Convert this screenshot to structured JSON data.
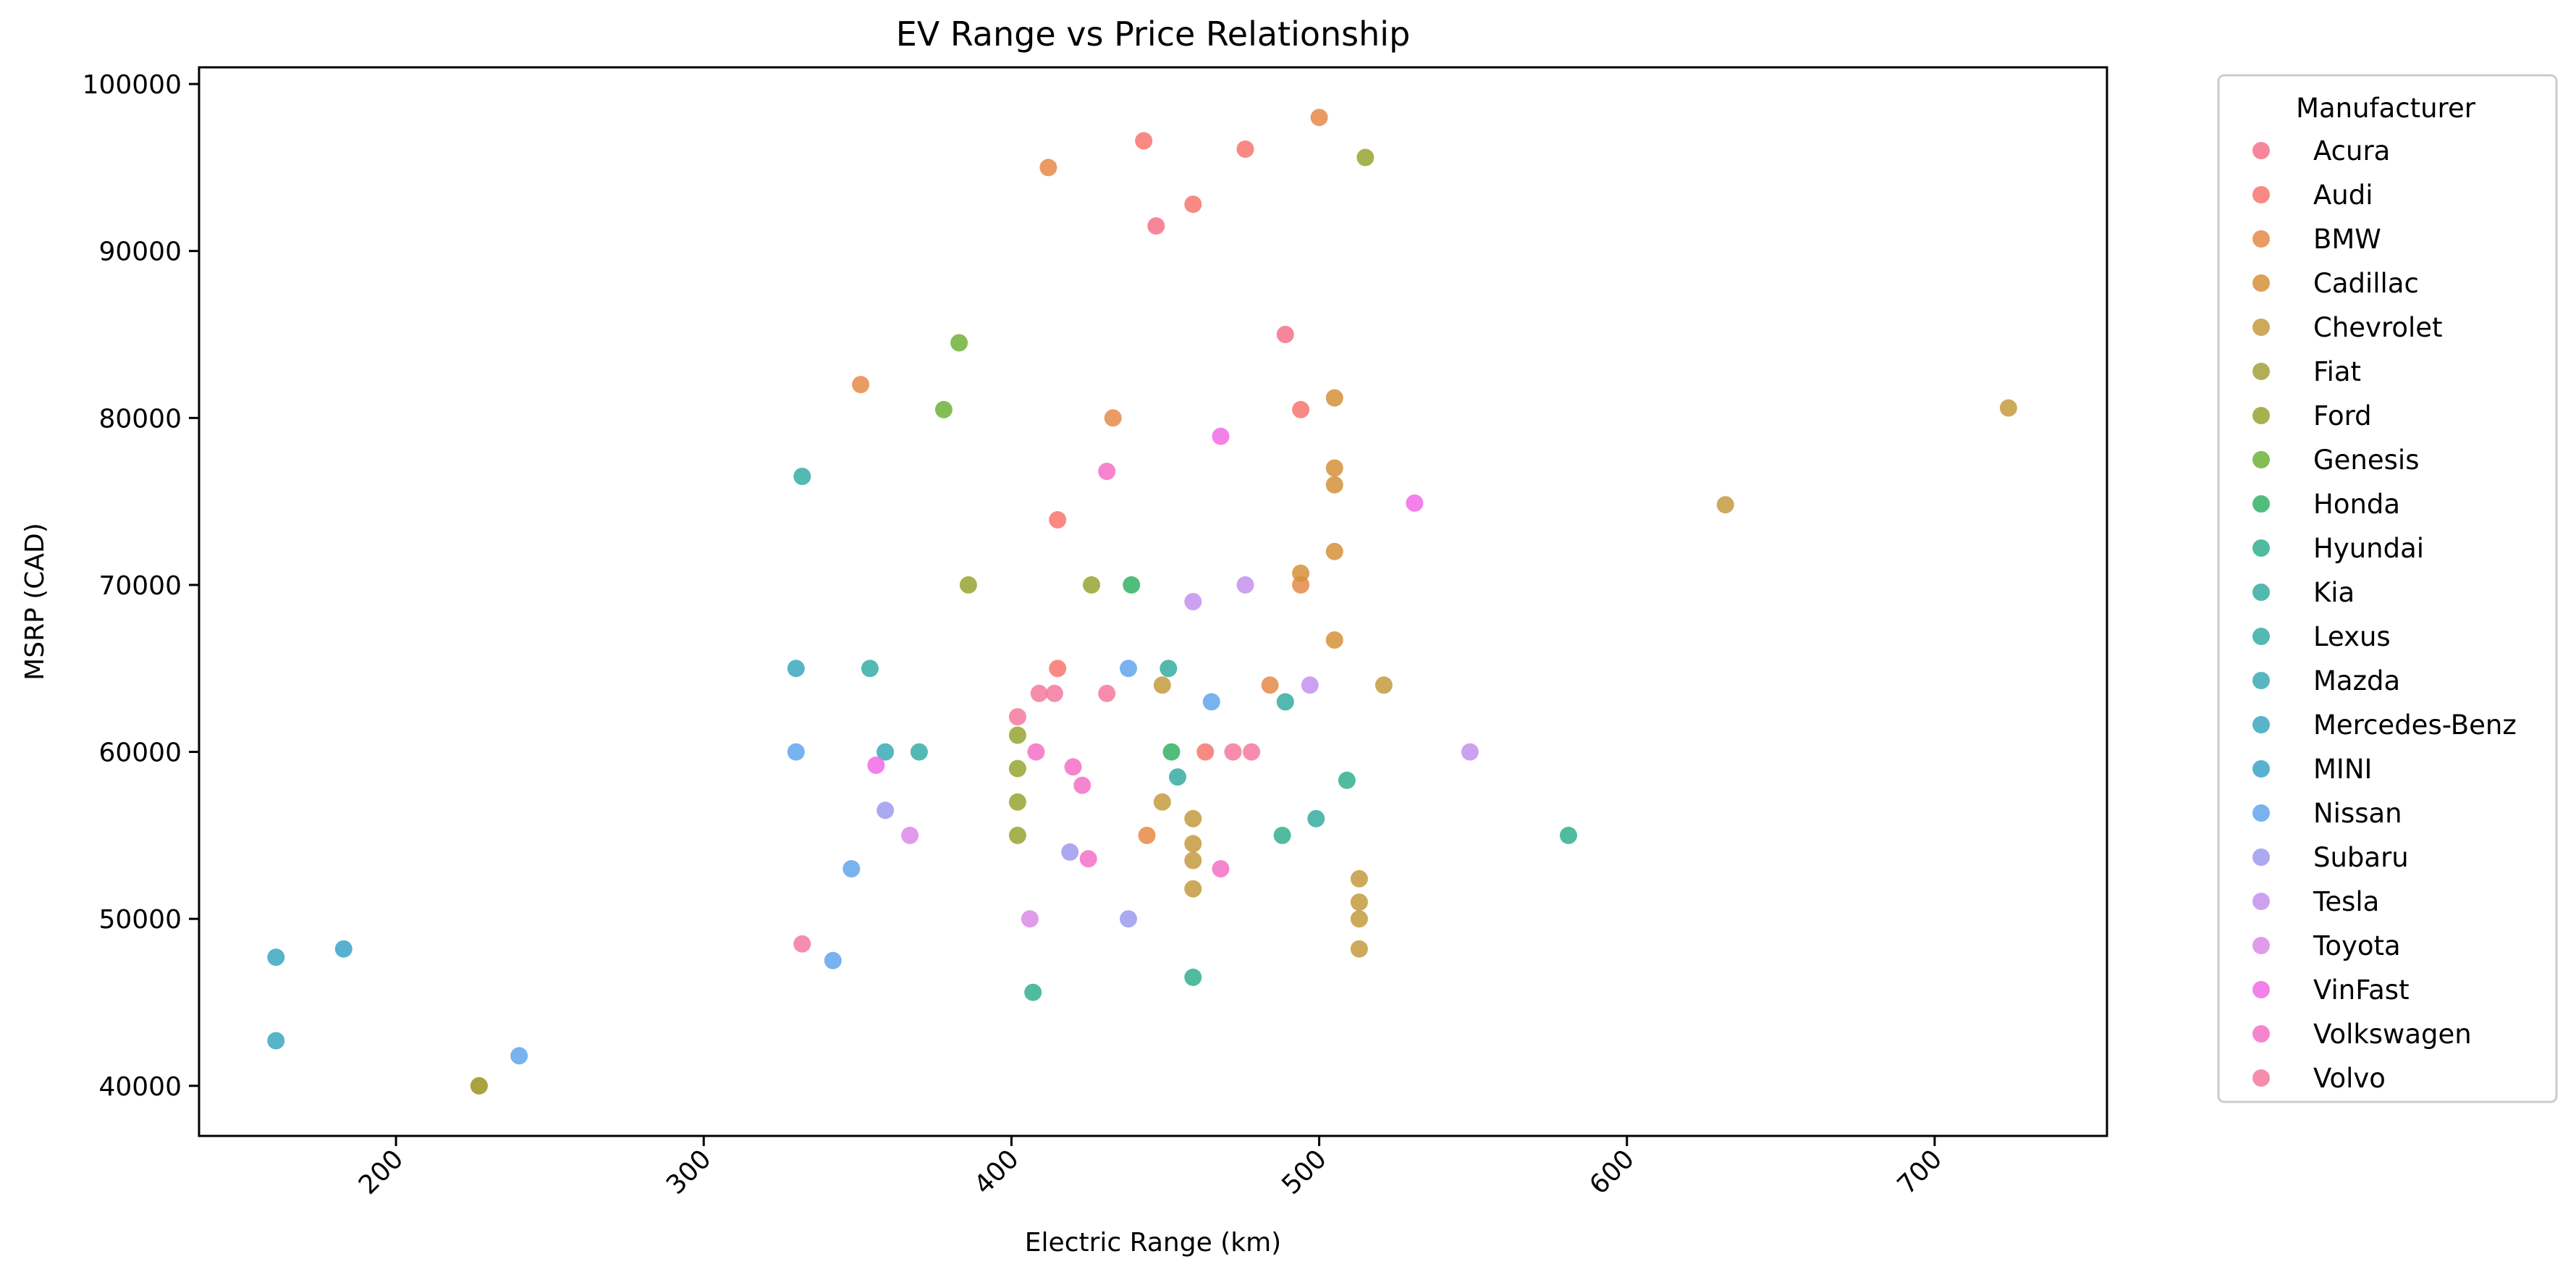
{
  "chart_data": {
    "type": "scatter",
    "title": "EV Range vs Price Relationship",
    "xlabel": "Electric Range (km)",
    "ylabel": "MSRP (CAD)",
    "xlim": [
      136,
      756
    ],
    "ylim": [
      37000,
      101000
    ],
    "x_ticks": [
      200,
      300,
      400,
      500,
      600,
      700
    ],
    "y_ticks": [
      40000,
      50000,
      60000,
      70000,
      80000,
      90000,
      100000
    ],
    "grid": false,
    "legend": {
      "title": "Manufacturer",
      "placement": "outside-right"
    },
    "series": [
      {
        "name": "Acura",
        "color": "#f77189",
        "points": [
          [
            447,
            91500
          ],
          [
            489,
            85000
          ]
        ]
      },
      {
        "name": "Audi",
        "color": "#f7766d",
        "points": [
          [
            443,
            96600
          ],
          [
            476,
            96100
          ],
          [
            459,
            92800
          ],
          [
            494,
            80500
          ],
          [
            415,
            73900
          ],
          [
            415,
            65000
          ],
          [
            463,
            60000
          ]
        ]
      },
      {
        "name": "BMW",
        "color": "#e58a48",
        "points": [
          [
            412,
            95000
          ],
          [
            500,
            98000
          ],
          [
            351,
            82000
          ],
          [
            433,
            80000
          ],
          [
            484,
            64000
          ],
          [
            444,
            55000
          ],
          [
            494,
            70000
          ]
        ]
      },
      {
        "name": "Cadillac",
        "color": "#d3913a",
        "points": [
          [
            505,
            81200
          ],
          [
            505,
            77000
          ],
          [
            505,
            76000
          ],
          [
            505,
            72000
          ],
          [
            494,
            70700
          ],
          [
            505,
            66700
          ]
        ]
      },
      {
        "name": "Chevrolet",
        "color": "#c49a3e",
        "points": [
          [
            632,
            74800
          ],
          [
            724,
            80600
          ],
          [
            521,
            64000
          ],
          [
            449,
            64000
          ],
          [
            449,
            57000
          ],
          [
            459,
            56000
          ],
          [
            459,
            54500
          ],
          [
            459,
            53500
          ],
          [
            459,
            51800
          ],
          [
            513,
            52400
          ],
          [
            513,
            51000
          ],
          [
            513,
            50000
          ],
          [
            513,
            48200
          ],
          [
            227,
            40000
          ]
        ]
      },
      {
        "name": "Fiat",
        "color": "#a5a03a",
        "points": [
          [
            227,
            40000
          ]
        ]
      },
      {
        "name": "Ford",
        "color": "#97a431",
        "points": [
          [
            515,
            95600
          ],
          [
            386,
            70000
          ],
          [
            426,
            70000
          ],
          [
            402,
            61000
          ],
          [
            402,
            59000
          ],
          [
            402,
            57000
          ],
          [
            402,
            55000
          ]
        ]
      },
      {
        "name": "Genesis",
        "color": "#6db136",
        "points": [
          [
            383,
            84500
          ],
          [
            378,
            80500
          ]
        ]
      },
      {
        "name": "Honda",
        "color": "#32b166",
        "points": [
          [
            439,
            70000
          ],
          [
            452,
            60000
          ]
        ]
      },
      {
        "name": "Hyundai",
        "color": "#33af8e",
        "points": [
          [
            581,
            55000
          ],
          [
            509,
            58300
          ],
          [
            488,
            55000
          ],
          [
            459,
            46500
          ],
          [
            407,
            45600
          ]
        ]
      },
      {
        "name": "Kia",
        "color": "#35ac9f",
        "points": [
          [
            451,
            65000
          ],
          [
            489,
            63000
          ],
          [
            454,
            58500
          ],
          [
            499,
            56000
          ]
        ]
      },
      {
        "name": "Lexus",
        "color": "#36ada4",
        "points": [
          [
            332,
            76500
          ],
          [
            354,
            65000
          ],
          [
            370,
            60000
          ]
        ]
      },
      {
        "name": "Mazda",
        "color": "#38aab5",
        "points": [
          [
            359,
            60000
          ]
        ]
      },
      {
        "name": "Mercedes-Benz",
        "color": "#3aa7c0",
        "points": [
          [
            161,
            47700
          ],
          [
            161,
            42700
          ],
          [
            330,
            65000
          ]
        ]
      },
      {
        "name": "MINI",
        "color": "#3ba3c7",
        "points": [
          [
            183,
            48200
          ]
        ]
      },
      {
        "name": "Nissan",
        "color": "#60a5ec",
        "points": [
          [
            438,
            65000
          ],
          [
            465,
            63000
          ],
          [
            330,
            60000
          ],
          [
            348,
            53000
          ],
          [
            342,
            47500
          ],
          [
            240,
            41800
          ]
        ]
      },
      {
        "name": "Subaru",
        "color": "#9b9aef",
        "points": [
          [
            359,
            56500
          ],
          [
            419,
            54000
          ],
          [
            438,
            50000
          ]
        ]
      },
      {
        "name": "Tesla",
        "color": "#c491ee",
        "points": [
          [
            476,
            70000
          ],
          [
            459,
            69000
          ],
          [
            497,
            64000
          ],
          [
            549,
            60000
          ]
        ]
      },
      {
        "name": "Toyota",
        "color": "#dc89e8",
        "points": [
          [
            367,
            55000
          ],
          [
            406,
            50000
          ]
        ]
      },
      {
        "name": "VinFast",
        "color": "#f26ae6",
        "points": [
          [
            531,
            74900
          ],
          [
            468,
            78900
          ],
          [
            356,
            59200
          ]
        ]
      },
      {
        "name": "Volkswagen",
        "color": "#f470c7",
        "points": [
          [
            431,
            76800
          ],
          [
            420,
            59100
          ],
          [
            423,
            58000
          ],
          [
            425,
            53600
          ],
          [
            468,
            53000
          ],
          [
            408,
            60000
          ]
        ]
      },
      {
        "name": "Volvo",
        "color": "#f6799e",
        "points": [
          [
            409,
            63500
          ],
          [
            414,
            63500
          ],
          [
            431,
            63500
          ],
          [
            402,
            62100
          ],
          [
            472,
            60000
          ],
          [
            478,
            60000
          ],
          [
            332,
            48500
          ]
        ]
      }
    ]
  }
}
